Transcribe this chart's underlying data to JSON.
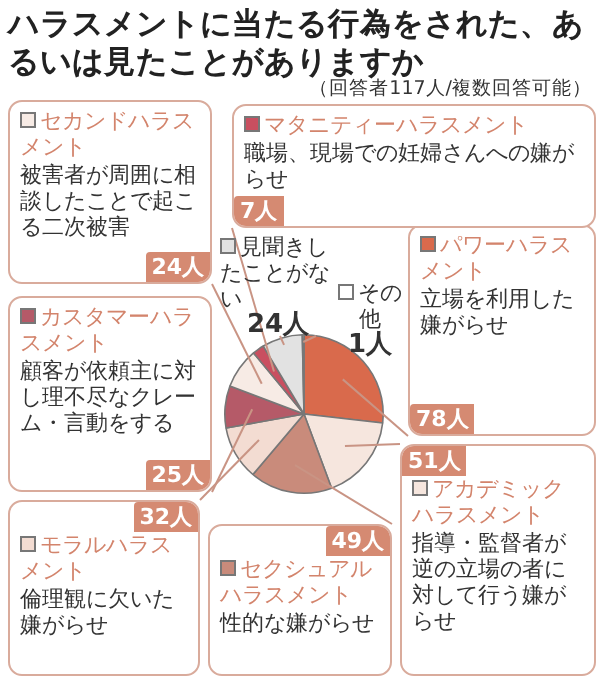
{
  "chart_data": {
    "type": "pie",
    "title": "ハラスメントに当たる行為をされた、あるいは見たことがありますか",
    "categories": [
      "パワーハラスメント",
      "アカデミックハラスメント",
      "セクシュアルハラスメント",
      "モラルハラスメント",
      "カスタマーハラスメント",
      "セカンドハラスメント",
      "マタニティーハラスメント",
      "見聞きしたことがない",
      "その他"
    ],
    "values": [
      78,
      51,
      49,
      32,
      25,
      24,
      7,
      24,
      1
    ],
    "colors": [
      "#d96a4c",
      "#f6e6de",
      "#c98b7b",
      "#f3dcd2",
      "#b55a68",
      "#f7ebe5",
      "#c94f60",
      "#e2e2e2",
      "#ffffff"
    ],
    "value_labels": [
      "78人",
      "51人",
      "49人",
      "32人",
      "25人",
      "24人",
      "7人",
      "24人",
      "1人"
    ],
    "annotations": [
      "（回答者117人/複数回答可能）",
      "立場を利用した嫌がらせ",
      "指導・監督者が逆の立場の者に対して行う嫌がらせ",
      "性的な嫌がらせ",
      "倫理観に欠いた嫌がらせ",
      "顧客が依頼主に対し理不尽なクレーム・言動をする",
      "被害者が周囲に相談したことで起こる二次被害",
      "職場、現場での妊婦さんへの嫌がらせ"
    ],
    "legend": "left"
  }
}
